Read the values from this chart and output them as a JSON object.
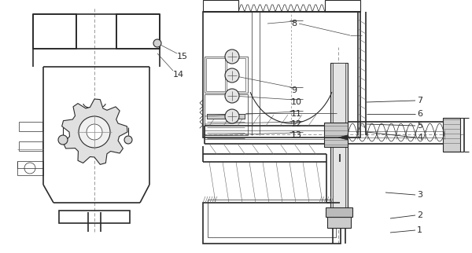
{
  "bg_color": "#ffffff",
  "line_color": "#2a2a2a",
  "gray1": "#cccccc",
  "gray2": "#e8e8e8",
  "dash_color": "#999999",
  "fig_width": 6.0,
  "fig_height": 3.22,
  "dpi": 100
}
